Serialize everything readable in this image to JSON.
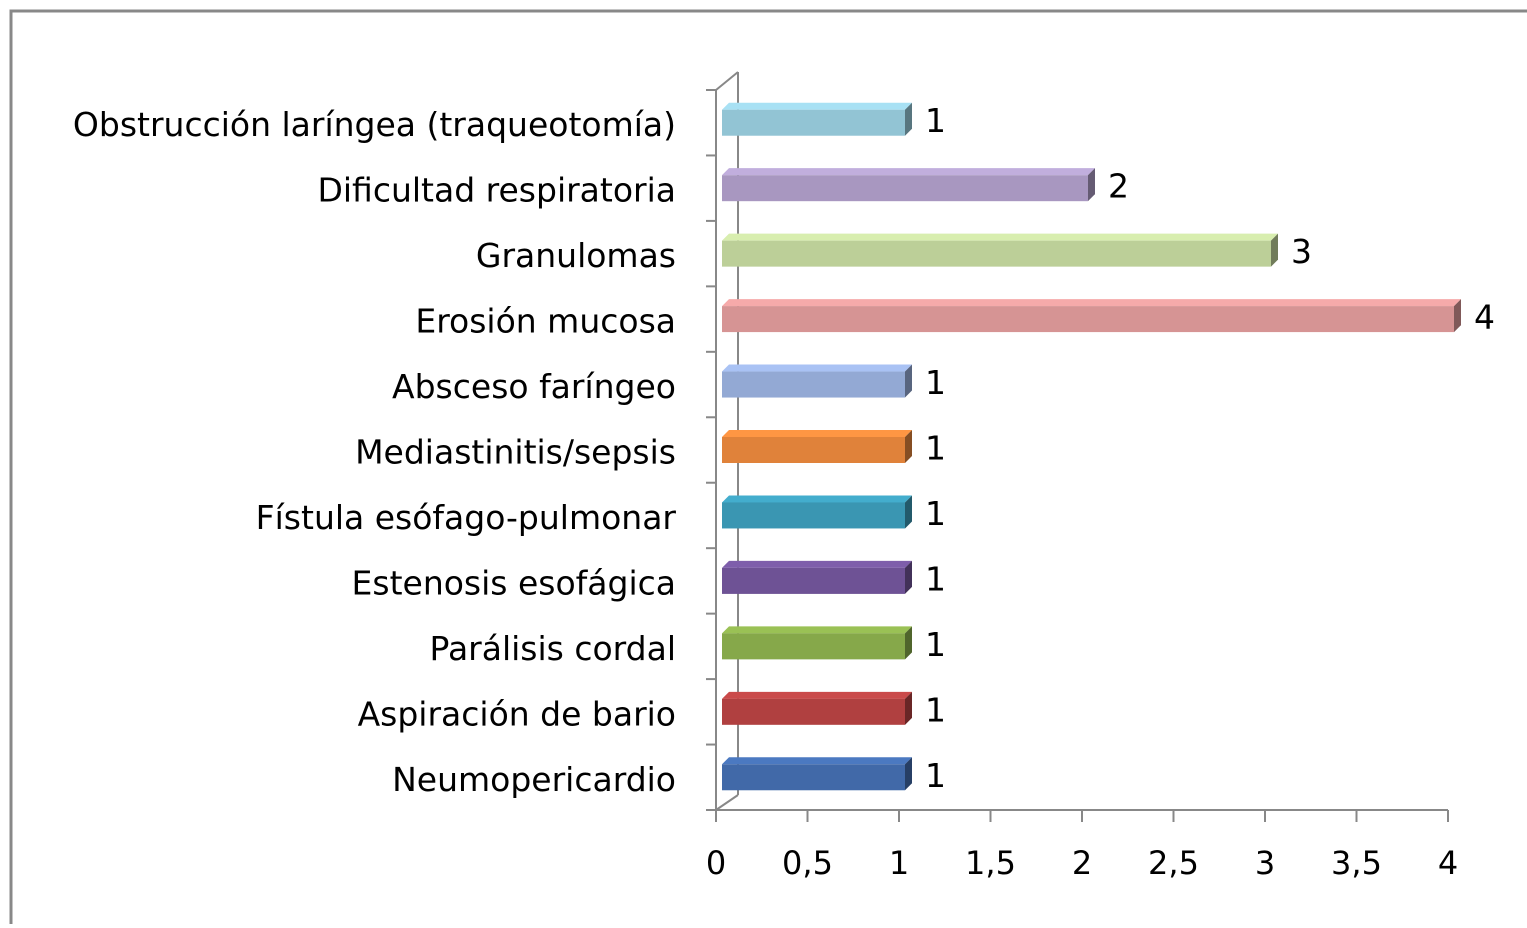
{
  "chart_data": {
    "type": "bar",
    "orientation": "horizontal",
    "categories": [
      "Neumopericardio",
      "Aspiración de bario",
      "Parálisis cordal",
      "Estenosis esofágica",
      "Fístula esófago-pulmonar",
      "Mediastinitis/sepsis",
      "Absceso faríngeo",
      "Erosión mucosa",
      "Granulomas",
      "Dificultad respiratoria",
      "Obstrucción laríngea (traqueotomía)"
    ],
    "values": [
      1,
      1,
      1,
      1,
      1,
      1,
      1,
      4,
      3,
      2,
      1
    ],
    "colors": [
      "#4169a8",
      "#b04040",
      "#86a84a",
      "#6e5295",
      "#3a96b2",
      "#e0823a",
      "#93a9d4",
      "#d69494",
      "#bccf98",
      "#a897c0",
      "#92c4d4"
    ],
    "xlim": [
      0,
      4
    ],
    "xticks": [
      0,
      {
        "value": 0.5,
        "label": "0,5"
      },
      1,
      {
        "value": 1.5,
        "label": "1,5"
      },
      2,
      {
        "value": 2.5,
        "label": "2,5"
      },
      3,
      {
        "value": 3.5,
        "label": "3,5"
      },
      4
    ]
  }
}
